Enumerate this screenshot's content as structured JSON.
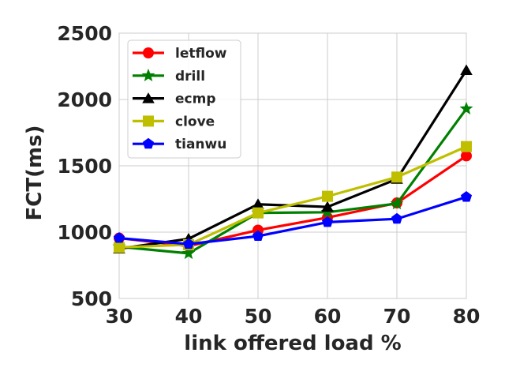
{
  "chart_data": {
    "type": "line",
    "xlabel": "link offered load %",
    "ylabel": "FCT(ms)",
    "x": [
      30,
      40,
      50,
      60,
      70,
      80
    ],
    "xticks": [
      "30",
      "40",
      "50",
      "60",
      "70",
      "80"
    ],
    "yticks": [
      "500",
      "1000",
      "1500",
      "2000",
      "2500"
    ],
    "xlim": [
      30,
      80
    ],
    "ylim": [
      500,
      2500
    ],
    "grid": true,
    "legend_position": "top-left",
    "series": [
      {
        "name": "letflow",
        "color": "#ff0000",
        "marker": "circle",
        "values": [
          955,
          895,
          1015,
          1110,
          1220,
          1575
        ]
      },
      {
        "name": "drill",
        "color": "#008000",
        "marker": "star",
        "values": [
          890,
          840,
          1145,
          1150,
          1215,
          1930
        ]
      },
      {
        "name": "ecmp",
        "color": "#000000",
        "marker": "triangle",
        "values": [
          875,
          950,
          1210,
          1190,
          1400,
          2220
        ]
      },
      {
        "name": "clove",
        "color": "#bfbf00",
        "marker": "square",
        "values": [
          885,
          905,
          1145,
          1270,
          1415,
          1645
        ]
      },
      {
        "name": "tianwu",
        "color": "#0000ff",
        "marker": "pentagon",
        "values": [
          955,
          910,
          970,
          1075,
          1100,
          1265
        ]
      }
    ]
  }
}
